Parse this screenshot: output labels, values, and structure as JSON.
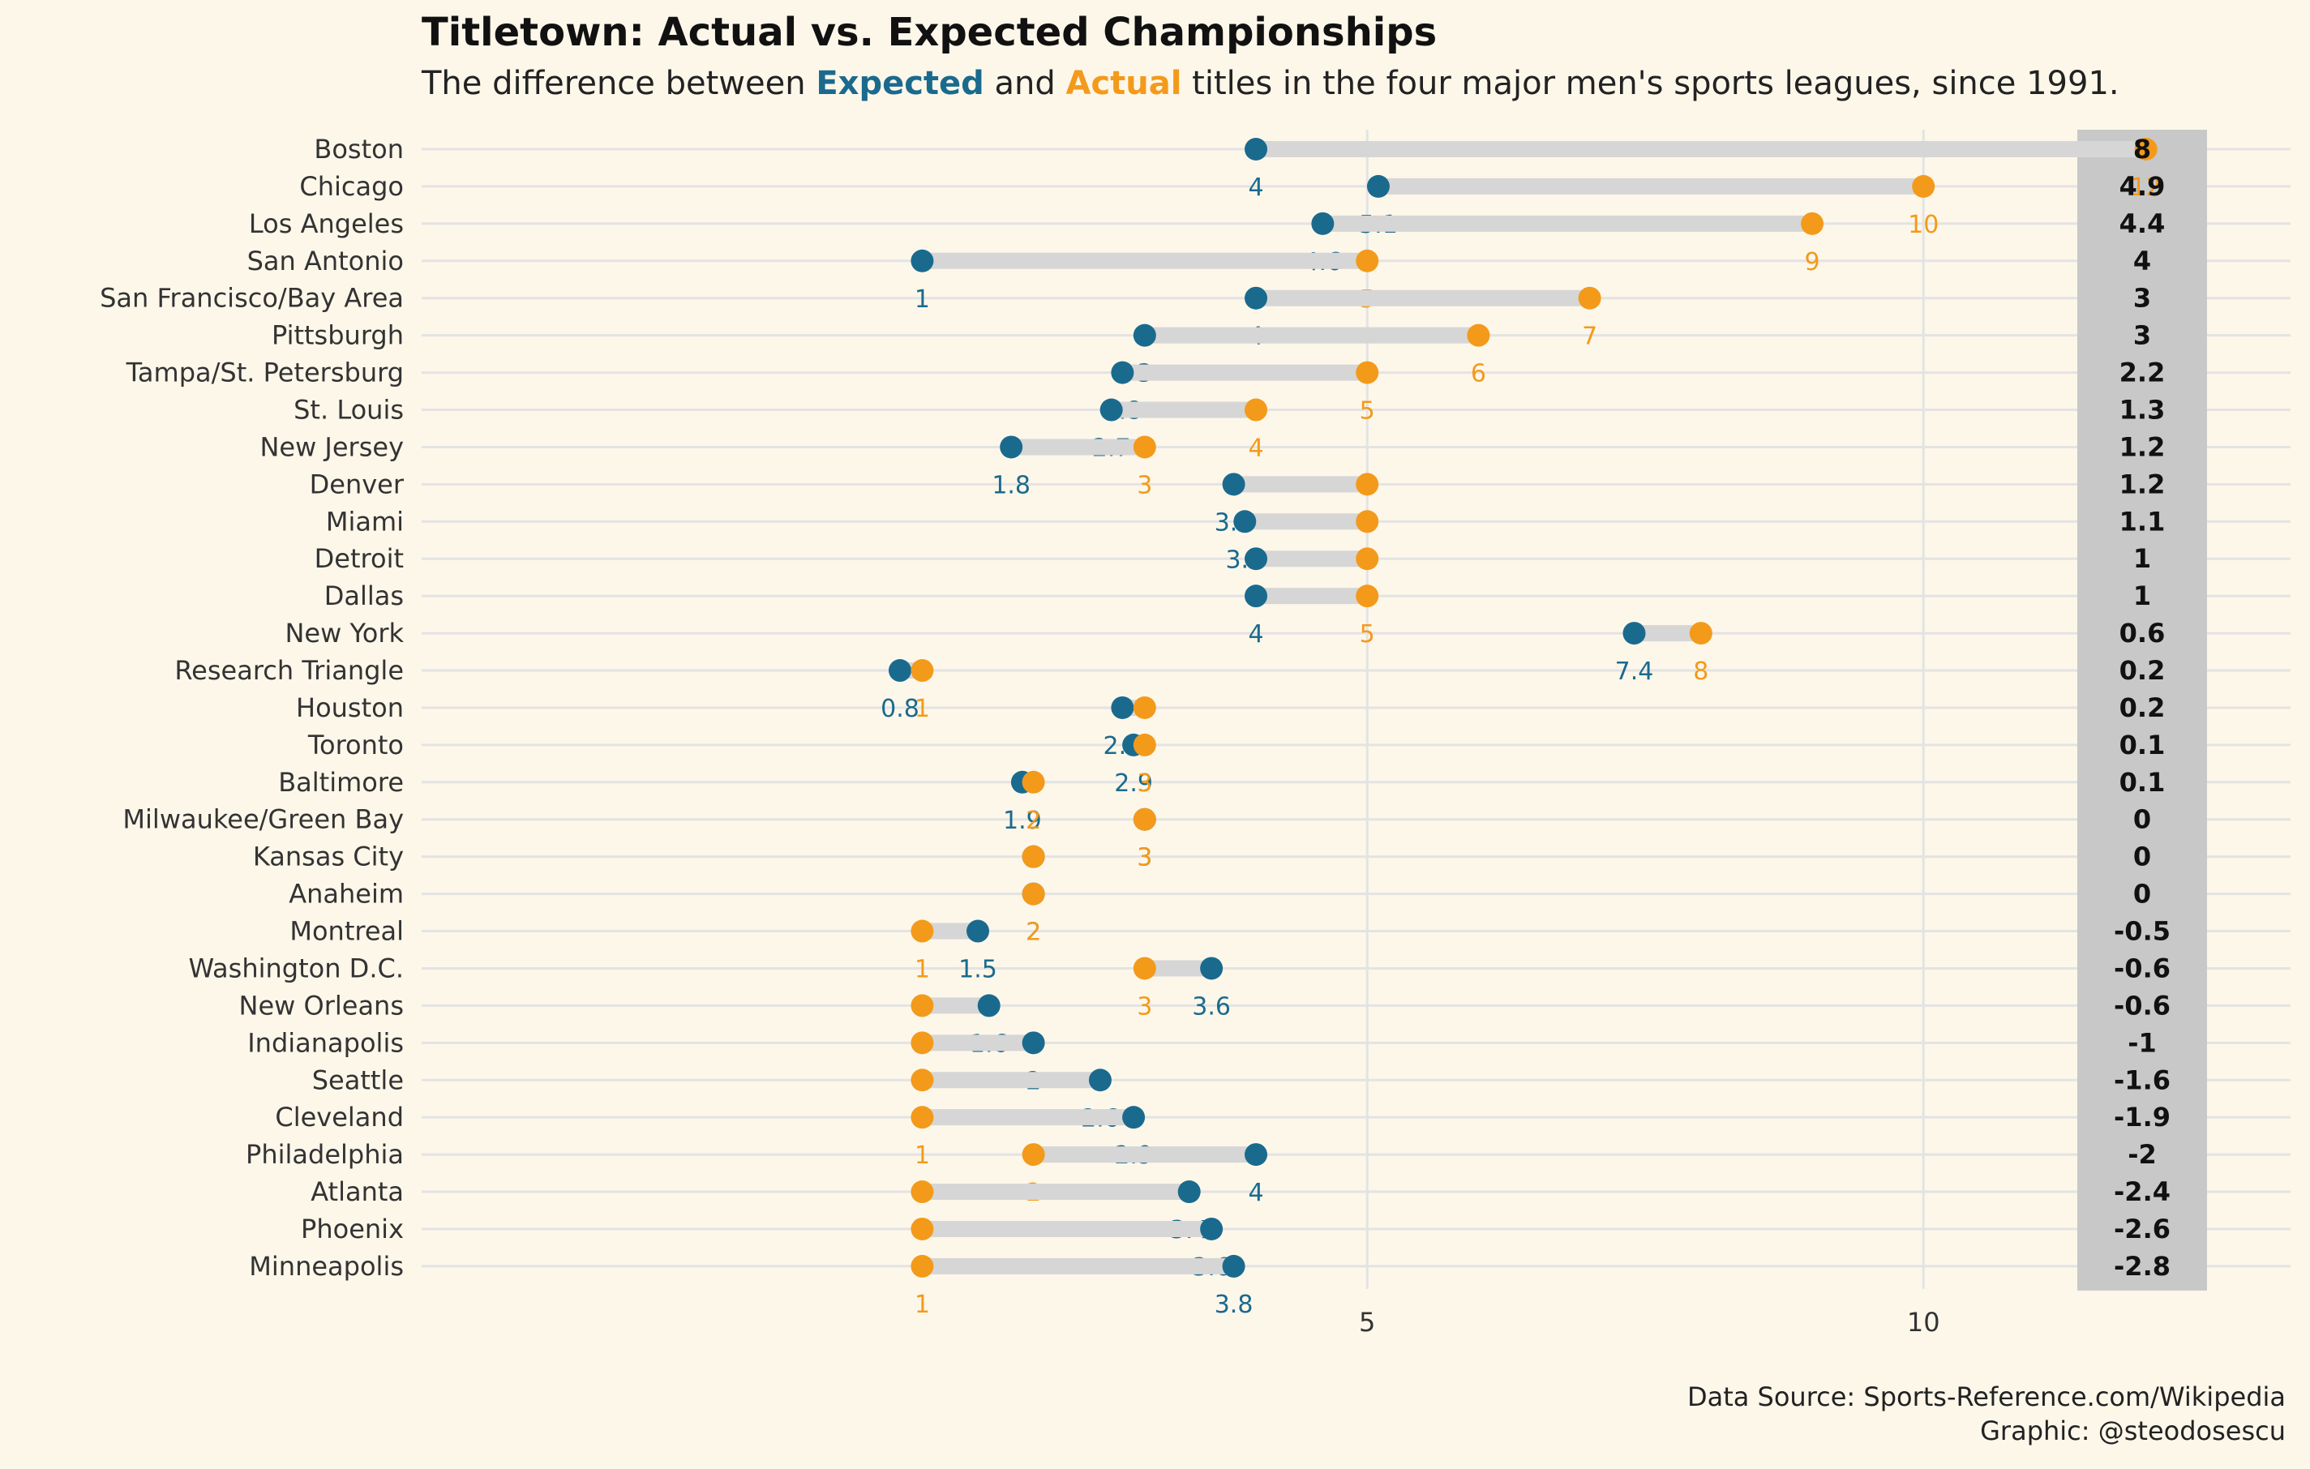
{
  "title": "Titletown: Actual vs. Expected Championships",
  "subtitle": {
    "before": "The difference between ",
    "expected_word": "Expected",
    "middle": " and ",
    "actual_word": "Actual",
    "after": " titles in the four major men's sports leagues, since 1991."
  },
  "caption": {
    "line1": "Data Source: Sports-Reference.com/Wikipedia",
    "line2": "Graphic: @steodosescu"
  },
  "colors": {
    "expected": "#1a6a8e",
    "actual": "#f39a1b",
    "segment": "#d6d6d6",
    "diff_box": "#c8c8c8",
    "grid": "#e3e3e3",
    "background": "#fdf7ea"
  },
  "chart_data": {
    "type": "dumbbell",
    "x_ticks": [
      5,
      10
    ],
    "xlim": [
      -3.5,
      13.3
    ],
    "series": [
      {
        "name": "Expected",
        "key": "expected"
      },
      {
        "name": "Actual",
        "key": "actual"
      }
    ],
    "rows": [
      {
        "city": "Boston",
        "expected": 4,
        "actual": 12,
        "diff": "8"
      },
      {
        "city": "Chicago",
        "expected": 5.1,
        "actual": 10,
        "diff": "4.9"
      },
      {
        "city": "Los Angeles",
        "expected": 4.6,
        "actual": 9,
        "diff": "4.4"
      },
      {
        "city": "San Antonio",
        "expected": 1,
        "actual": 5,
        "diff": "4"
      },
      {
        "city": "San Francisco/Bay Area",
        "expected": 4,
        "actual": 7,
        "diff": "3"
      },
      {
        "city": "Pittsburgh",
        "expected": 3,
        "actual": 6,
        "diff": "3"
      },
      {
        "city": "Tampa/St. Petersburg",
        "expected": 2.8,
        "actual": 5,
        "diff": "2.2"
      },
      {
        "city": "St. Louis",
        "expected": 2.7,
        "actual": 4,
        "diff": "1.3"
      },
      {
        "city": "New Jersey",
        "expected": 1.8,
        "actual": 3,
        "diff": "1.2"
      },
      {
        "city": "Denver",
        "expected": 3.8,
        "actual": 5,
        "diff": "1.2"
      },
      {
        "city": "Miami",
        "expected": 3.9,
        "actual": 5,
        "diff": "1.1"
      },
      {
        "city": "Detroit",
        "expected": 4,
        "actual": 5,
        "diff": "1"
      },
      {
        "city": "Dallas",
        "expected": 4,
        "actual": 5,
        "diff": "1"
      },
      {
        "city": "New York",
        "expected": 7.4,
        "actual": 8,
        "diff": "0.6"
      },
      {
        "city": "Research Triangle",
        "expected": 0.8,
        "actual": 1,
        "diff": "0.2"
      },
      {
        "city": "Houston",
        "expected": 2.8,
        "actual": 3,
        "diff": "0.2"
      },
      {
        "city": "Toronto",
        "expected": 2.9,
        "actual": 3,
        "diff": "0.1"
      },
      {
        "city": "Baltimore",
        "expected": 1.9,
        "actual": 2,
        "diff": "0.1"
      },
      {
        "city": "Milwaukee/Green Bay",
        "expected": 3,
        "actual": 3,
        "diff": "0"
      },
      {
        "city": "Kansas City",
        "expected": 2,
        "actual": 2,
        "diff": "0"
      },
      {
        "city": "Anaheim",
        "expected": 2,
        "actual": 2,
        "diff": "0"
      },
      {
        "city": "Montreal",
        "expected": 1.5,
        "actual": 1,
        "diff": "-0.5"
      },
      {
        "city": "Washington D.C.",
        "expected": 3.6,
        "actual": 3,
        "diff": "-0.6"
      },
      {
        "city": "New Orleans",
        "expected": 1.6,
        "actual": 1,
        "diff": "-0.6"
      },
      {
        "city": "Indianapolis",
        "expected": 2,
        "actual": 1,
        "diff": "-1"
      },
      {
        "city": "Seattle",
        "expected": 2.6,
        "actual": 1,
        "diff": "-1.6"
      },
      {
        "city": "Cleveland",
        "expected": 2.9,
        "actual": 1,
        "diff": "-1.9"
      },
      {
        "city": "Philadelphia",
        "expected": 4,
        "actual": 2,
        "diff": "-2"
      },
      {
        "city": "Atlanta",
        "expected": 3.4,
        "actual": 1,
        "diff": "-2.4"
      },
      {
        "city": "Phoenix",
        "expected": 3.6,
        "actual": 1,
        "diff": "-2.6"
      },
      {
        "city": "Minneapolis",
        "expected": 3.8,
        "actual": 1,
        "diff": "-2.8"
      }
    ]
  }
}
